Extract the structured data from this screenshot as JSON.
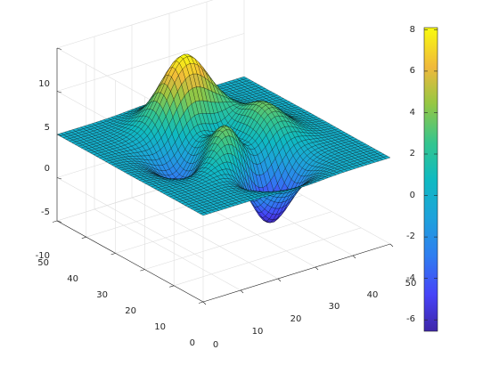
{
  "chart_data": {
    "type": "surface",
    "function": "peaks",
    "grid_size": 49,
    "x_range": [
      0,
      50
    ],
    "y_range": [
      0,
      50
    ],
    "z_range": [
      -10,
      10
    ],
    "x_ticks": [
      0,
      10,
      20,
      30,
      40,
      50
    ],
    "y_ticks": [
      0,
      10,
      20,
      30,
      40,
      50
    ],
    "z_ticks": [
      -10,
      -5,
      0,
      5,
      10
    ],
    "colorbar": {
      "range": [
        -6.55,
        8.1
      ],
      "ticks": [
        -6,
        -4,
        -2,
        0,
        2,
        4,
        6,
        8
      ],
      "colormap": "parula"
    },
    "grid": true,
    "edge_color": "#000000",
    "features": [
      {
        "label": "max",
        "value": 8.1
      },
      {
        "label": "min",
        "value": -6.55
      }
    ]
  },
  "labels": {
    "x_ticks": [
      "0",
      "10",
      "20",
      "30",
      "40",
      "50"
    ],
    "y_ticks": [
      "0",
      "10",
      "20",
      "30",
      "40",
      "50"
    ],
    "z_ticks": [
      "-10",
      "-5",
      "0",
      "5",
      "10"
    ],
    "cb_ticks": [
      "-6",
      "-4",
      "-2",
      "0",
      "2",
      "4",
      "6",
      "8"
    ]
  }
}
